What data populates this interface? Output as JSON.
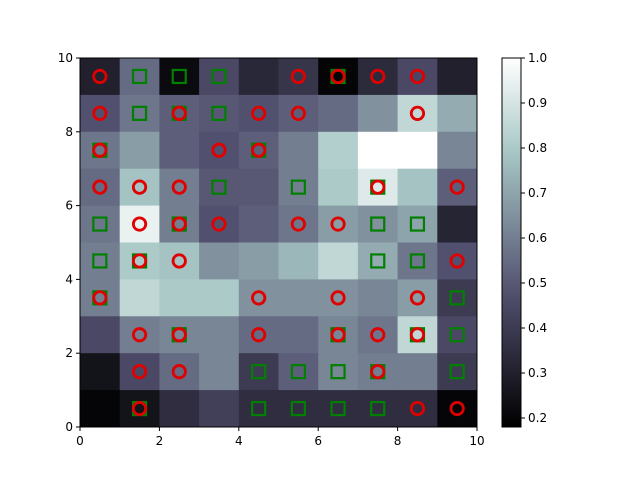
{
  "chart_data": {
    "type": "heatmap",
    "title": "",
    "xlabel": "",
    "ylabel": "",
    "xlim": [
      0,
      10
    ],
    "ylim": [
      0,
      10
    ],
    "x_ticks": [
      "0",
      "2",
      "4",
      "6",
      "8",
      "10"
    ],
    "y_ticks": [
      "0",
      "2",
      "4",
      "6",
      "8",
      "10"
    ],
    "colormap": "bone",
    "colorbar": {
      "range": [
        0.18,
        1.0
      ],
      "ticks": [
        "0.2",
        "0.3",
        "0.4",
        "0.5",
        "0.6",
        "0.7",
        "0.8",
        "0.9",
        "1.0"
      ]
    },
    "grid_values_top_to_bottom": [
      [
        0.3,
        0.55,
        0.22,
        0.45,
        0.33,
        0.38,
        0.2,
        0.34,
        0.45,
        0.3
      ],
      [
        0.48,
        0.58,
        0.52,
        0.5,
        0.48,
        0.52,
        0.55,
        0.65,
        0.85,
        0.72
      ],
      [
        0.58,
        0.68,
        0.52,
        0.48,
        0.52,
        0.6,
        0.82,
        1.0,
        1.0,
        0.62
      ],
      [
        0.55,
        0.78,
        0.6,
        0.5,
        0.5,
        0.6,
        0.8,
        0.92,
        0.78,
        0.52
      ],
      [
        0.58,
        0.95,
        0.6,
        0.48,
        0.52,
        0.58,
        0.68,
        0.65,
        0.7,
        0.32
      ],
      [
        0.6,
        0.8,
        0.78,
        0.65,
        0.68,
        0.75,
        0.85,
        0.72,
        0.58,
        0.48
      ],
      [
        0.6,
        0.85,
        0.8,
        0.8,
        0.65,
        0.65,
        0.65,
        0.62,
        0.68,
        0.4
      ],
      [
        0.45,
        0.6,
        0.62,
        0.62,
        0.55,
        0.55,
        0.62,
        0.58,
        0.85,
        0.45
      ],
      [
        0.25,
        0.45,
        0.55,
        0.62,
        0.4,
        0.52,
        0.62,
        0.6,
        0.6,
        0.4
      ],
      [
        0.2,
        0.25,
        0.35,
        0.42,
        0.35,
        0.35,
        0.35,
        0.35,
        0.35,
        0.2
      ]
    ],
    "markers": [
      {
        "x": 0.5,
        "y": 9.5,
        "marker": "circle"
      },
      {
        "x": 1.5,
        "y": 9.5,
        "marker": "square"
      },
      {
        "x": 2.5,
        "y": 9.5,
        "marker": "square"
      },
      {
        "x": 3.5,
        "y": 9.5,
        "marker": "square"
      },
      {
        "x": 5.5,
        "y": 9.5,
        "marker": "circle"
      },
      {
        "x": 6.5,
        "y": 9.5,
        "marker": "both"
      },
      {
        "x": 7.5,
        "y": 9.5,
        "marker": "circle"
      },
      {
        "x": 8.5,
        "y": 9.5,
        "marker": "circle"
      },
      {
        "x": 0.5,
        "y": 8.5,
        "marker": "circle"
      },
      {
        "x": 1.5,
        "y": 8.5,
        "marker": "square"
      },
      {
        "x": 2.5,
        "y": 8.5,
        "marker": "both"
      },
      {
        "x": 3.5,
        "y": 8.5,
        "marker": "square"
      },
      {
        "x": 4.5,
        "y": 8.5,
        "marker": "circle"
      },
      {
        "x": 5.5,
        "y": 8.5,
        "marker": "circle"
      },
      {
        "x": 8.5,
        "y": 8.5,
        "marker": "circle"
      },
      {
        "x": 0.5,
        "y": 7.5,
        "marker": "both"
      },
      {
        "x": 3.5,
        "y": 7.5,
        "marker": "circle"
      },
      {
        "x": 4.5,
        "y": 7.5,
        "marker": "both"
      },
      {
        "x": 0.5,
        "y": 6.5,
        "marker": "circle"
      },
      {
        "x": 1.5,
        "y": 6.5,
        "marker": "circle"
      },
      {
        "x": 2.5,
        "y": 6.5,
        "marker": "circle"
      },
      {
        "x": 3.5,
        "y": 6.5,
        "marker": "square"
      },
      {
        "x": 5.5,
        "y": 6.5,
        "marker": "square"
      },
      {
        "x": 7.5,
        "y": 6.5,
        "marker": "both"
      },
      {
        "x": 9.5,
        "y": 6.5,
        "marker": "circle"
      },
      {
        "x": 0.5,
        "y": 5.5,
        "marker": "square"
      },
      {
        "x": 1.5,
        "y": 5.5,
        "marker": "circle"
      },
      {
        "x": 2.5,
        "y": 5.5,
        "marker": "both"
      },
      {
        "x": 3.5,
        "y": 5.5,
        "marker": "circle"
      },
      {
        "x": 5.5,
        "y": 5.5,
        "marker": "circle"
      },
      {
        "x": 6.5,
        "y": 5.5,
        "marker": "circle"
      },
      {
        "x": 7.5,
        "y": 5.5,
        "marker": "square"
      },
      {
        "x": 8.5,
        "y": 5.5,
        "marker": "square"
      },
      {
        "x": 0.5,
        "y": 4.5,
        "marker": "square"
      },
      {
        "x": 1.5,
        "y": 4.5,
        "marker": "both"
      },
      {
        "x": 2.5,
        "y": 4.5,
        "marker": "circle"
      },
      {
        "x": 7.5,
        "y": 4.5,
        "marker": "square"
      },
      {
        "x": 8.5,
        "y": 4.5,
        "marker": "square"
      },
      {
        "x": 9.5,
        "y": 4.5,
        "marker": "circle"
      },
      {
        "x": 0.5,
        "y": 3.5,
        "marker": "both"
      },
      {
        "x": 4.5,
        "y": 3.5,
        "marker": "circle"
      },
      {
        "x": 6.5,
        "y": 3.5,
        "marker": "circle"
      },
      {
        "x": 8.5,
        "y": 3.5,
        "marker": "circle"
      },
      {
        "x": 9.5,
        "y": 3.5,
        "marker": "square"
      },
      {
        "x": 1.5,
        "y": 2.5,
        "marker": "circle"
      },
      {
        "x": 2.5,
        "y": 2.5,
        "marker": "both"
      },
      {
        "x": 4.5,
        "y": 2.5,
        "marker": "circle"
      },
      {
        "x": 6.5,
        "y": 2.5,
        "marker": "both"
      },
      {
        "x": 7.5,
        "y": 2.5,
        "marker": "circle"
      },
      {
        "x": 8.5,
        "y": 2.5,
        "marker": "both"
      },
      {
        "x": 9.5,
        "y": 2.5,
        "marker": "square"
      },
      {
        "x": 1.5,
        "y": 1.5,
        "marker": "circle"
      },
      {
        "x": 2.5,
        "y": 1.5,
        "marker": "circle"
      },
      {
        "x": 4.5,
        "y": 1.5,
        "marker": "square"
      },
      {
        "x": 5.5,
        "y": 1.5,
        "marker": "square"
      },
      {
        "x": 6.5,
        "y": 1.5,
        "marker": "square"
      },
      {
        "x": 7.5,
        "y": 1.5,
        "marker": "both"
      },
      {
        "x": 9.5,
        "y": 1.5,
        "marker": "square"
      },
      {
        "x": 1.5,
        "y": 0.5,
        "marker": "both"
      },
      {
        "x": 4.5,
        "y": 0.5,
        "marker": "square"
      },
      {
        "x": 5.5,
        "y": 0.5,
        "marker": "square"
      },
      {
        "x": 6.5,
        "y": 0.5,
        "marker": "square"
      },
      {
        "x": 7.5,
        "y": 0.5,
        "marker": "square"
      },
      {
        "x": 8.5,
        "y": 0.5,
        "marker": "circle"
      },
      {
        "x": 9.5,
        "y": 0.5,
        "marker": "circle"
      }
    ],
    "marker_colors": {
      "circle": "#e00000",
      "square": "#008000"
    }
  }
}
